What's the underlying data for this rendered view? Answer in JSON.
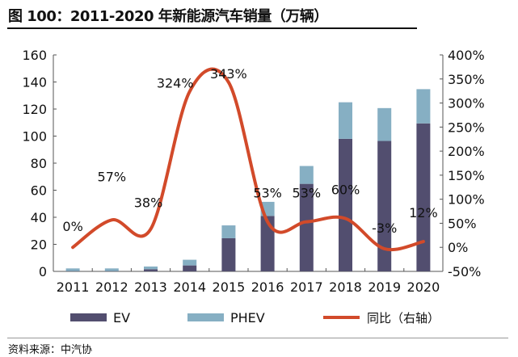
{
  "title": "图 100：2011-2020 年新能源汽车销量（万辆）",
  "source": "资料来源：中汽协",
  "chart_data": {
    "type": "bar",
    "title": "图 100：2011-2020 年新能源汽车销量（万辆）",
    "categories": [
      "2011",
      "2012",
      "2013",
      "2014",
      "2015",
      "2016",
      "2017",
      "2018",
      "2019",
      "2020"
    ],
    "stacked": true,
    "series": [
      {
        "name": "EV",
        "type": "bar",
        "axis": "left",
        "color": "#524E6F",
        "values": [
          0.2,
          0.2,
          1.6,
          4.4,
          24.5,
          41,
          64.7,
          98,
          96.4,
          109.4
        ]
      },
      {
        "name": "PHEV",
        "type": "bar",
        "axis": "left",
        "color": "#86AFC3",
        "values": [
          2.0,
          2.0,
          2.0,
          4.2,
          9.5,
          10.4,
          13.2,
          27,
          24.3,
          25.3
        ]
      },
      {
        "name": "同比（右轴）",
        "type": "line",
        "axis": "right",
        "color": "#D24A2A",
        "values": [
          0,
          57,
          38,
          324,
          343,
          53,
          53,
          60,
          -3,
          12
        ],
        "labels": [
          "0%",
          "57%",
          "38%",
          "324%",
          "343%",
          "53%",
          "53%",
          "60%",
          "-3%",
          "12%"
        ]
      }
    ],
    "ylim": [
      0,
      160
    ],
    "yticks": [
      "0",
      "20",
      "40",
      "60",
      "80",
      "100",
      "120",
      "140",
      "160"
    ],
    "y2lim": [
      -50,
      400
    ],
    "y2ticks": [
      "-50%",
      "0%",
      "50%",
      "100%",
      "150%",
      "200%",
      "250%",
      "300%",
      "350%",
      "400%"
    ],
    "grid": false,
    "legend": "bottom"
  }
}
